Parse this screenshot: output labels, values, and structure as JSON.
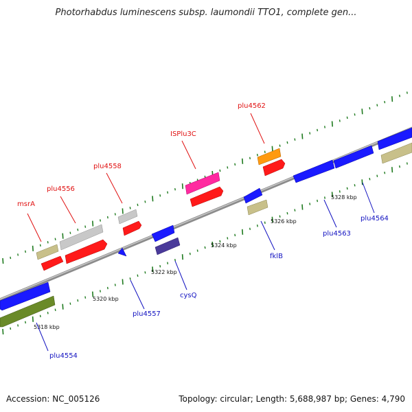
{
  "title": "Photorhabdus luminescens subsp. laumondii TTO1, complete gen...",
  "footer": {
    "accession": "Accession: NC_005126",
    "summary": "Topology: circular; Length: 5,688,987 bp; Genes: 4,790"
  },
  "ruler_labels": [
    "5318 kbp",
    "5320 kbp",
    "5322 kbp",
    "5324 kbp",
    "5326 kbp",
    "5328 kbp"
  ],
  "top_labels": [
    "msrA",
    "plu4556",
    "plu4558",
    "ISPlu3C",
    "plu4562"
  ],
  "bottom_labels": [
    "plu4554",
    "plu4557",
    "cysQ",
    "fklB",
    "plu4563",
    "plu4564"
  ],
  "colors": {
    "backbone": "#8c8c8c",
    "tick": "#1e7a1e",
    "top_label": "#e01010",
    "bottom_label": "#1010c0",
    "red": "#ff1a1a",
    "gray": "#c8c8c8",
    "khaki": "#c8c08a",
    "magenta": "#ff2aa0",
    "orange": "#ff9a10",
    "blue": "#1a1aff",
    "olive": "#6a8a28",
    "slate": "#4a3a9a"
  }
}
